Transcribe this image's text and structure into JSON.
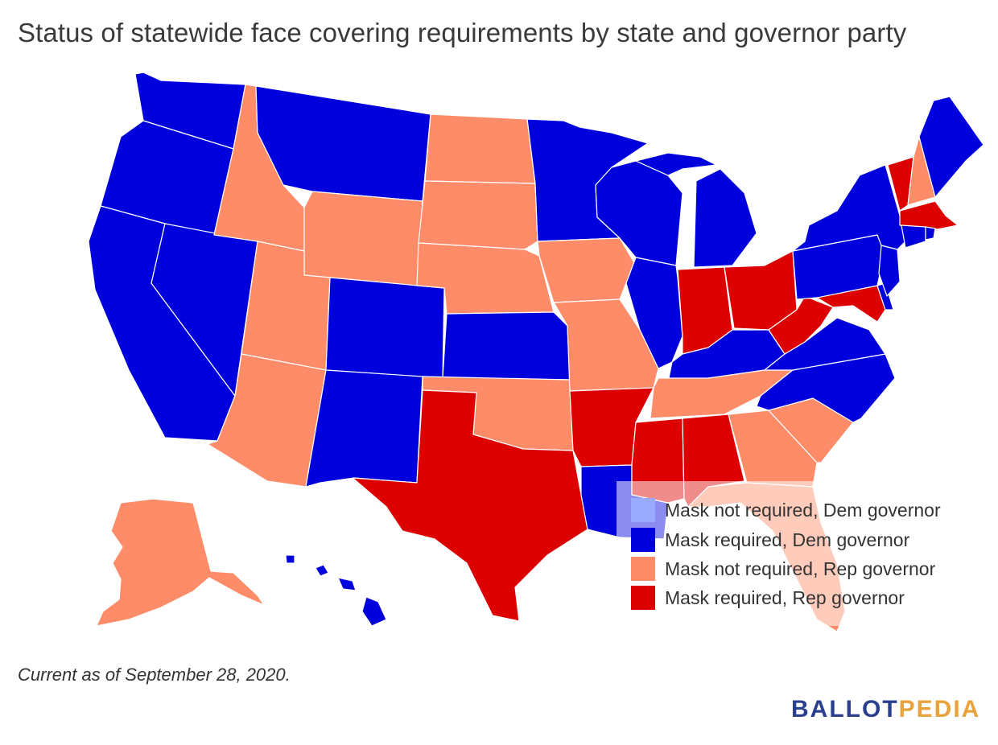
{
  "title": "Status of statewide face covering requirements by state and governor party",
  "colors": {
    "mask_not_required_dem": "#99aaff",
    "mask_required_dem": "#0000dd",
    "mask_not_required_rep": "#ff8c69",
    "mask_required_rep": "#dd0000"
  },
  "legend": [
    {
      "label": "Mask not required, Dem governor",
      "color": "#99aaff"
    },
    {
      "label": "Mask required, Dem governor",
      "color": "#0000dd"
    },
    {
      "label": "Mask not required, Rep governor",
      "color": "#ff8c69"
    },
    {
      "label": "Mask required, Rep governor",
      "color": "#dd0000"
    }
  ],
  "states": [
    {
      "state": "Washington",
      "status": "Mask required, Dem governor"
    },
    {
      "state": "Oregon",
      "status": "Mask required, Dem governor"
    },
    {
      "state": "California",
      "status": "Mask required, Dem governor"
    },
    {
      "state": "Nevada",
      "status": "Mask required, Dem governor"
    },
    {
      "state": "Idaho",
      "status": "Mask not required, Rep governor"
    },
    {
      "state": "Montana",
      "status": "Mask required, Dem governor"
    },
    {
      "state": "Wyoming",
      "status": "Mask not required, Rep governor"
    },
    {
      "state": "Utah",
      "status": "Mask not required, Rep governor"
    },
    {
      "state": "Arizona",
      "status": "Mask not required, Rep governor"
    },
    {
      "state": "Colorado",
      "status": "Mask required, Dem governor"
    },
    {
      "state": "New Mexico",
      "status": "Mask required, Dem governor"
    },
    {
      "state": "North Dakota",
      "status": "Mask not required, Rep governor"
    },
    {
      "state": "South Dakota",
      "status": "Mask not required, Rep governor"
    },
    {
      "state": "Nebraska",
      "status": "Mask not required, Rep governor"
    },
    {
      "state": "Kansas",
      "status": "Mask required, Dem governor"
    },
    {
      "state": "Oklahoma",
      "status": "Mask not required, Rep governor"
    },
    {
      "state": "Texas",
      "status": "Mask required, Rep governor"
    },
    {
      "state": "Minnesota",
      "status": "Mask required, Dem governor"
    },
    {
      "state": "Iowa",
      "status": "Mask not required, Rep governor"
    },
    {
      "state": "Missouri",
      "status": "Mask not required, Rep governor"
    },
    {
      "state": "Arkansas",
      "status": "Mask required, Rep governor"
    },
    {
      "state": "Louisiana",
      "status": "Mask required, Dem governor"
    },
    {
      "state": "Wisconsin",
      "status": "Mask required, Dem governor"
    },
    {
      "state": "Illinois",
      "status": "Mask required, Dem governor"
    },
    {
      "state": "Michigan",
      "status": "Mask required, Dem governor"
    },
    {
      "state": "Indiana",
      "status": "Mask required, Rep governor"
    },
    {
      "state": "Ohio",
      "status": "Mask required, Rep governor"
    },
    {
      "state": "Kentucky",
      "status": "Mask required, Dem governor"
    },
    {
      "state": "Tennessee",
      "status": "Mask not required, Rep governor"
    },
    {
      "state": "Mississippi",
      "status": "Mask required, Rep governor"
    },
    {
      "state": "Alabama",
      "status": "Mask required, Rep governor"
    },
    {
      "state": "Georgia",
      "status": "Mask not required, Rep governor"
    },
    {
      "state": "Florida",
      "status": "Mask not required, Rep governor"
    },
    {
      "state": "South Carolina",
      "status": "Mask not required, Rep governor"
    },
    {
      "state": "North Carolina",
      "status": "Mask required, Dem governor"
    },
    {
      "state": "Virginia",
      "status": "Mask required, Dem governor"
    },
    {
      "state": "West Virginia",
      "status": "Mask required, Rep governor"
    },
    {
      "state": "Maryland",
      "status": "Mask required, Rep governor"
    },
    {
      "state": "Delaware",
      "status": "Mask required, Dem governor"
    },
    {
      "state": "Pennsylvania",
      "status": "Mask required, Dem governor"
    },
    {
      "state": "New Jersey",
      "status": "Mask required, Dem governor"
    },
    {
      "state": "New York",
      "status": "Mask required, Dem governor"
    },
    {
      "state": "Connecticut",
      "status": "Mask required, Dem governor"
    },
    {
      "state": "Rhode Island",
      "status": "Mask required, Dem governor"
    },
    {
      "state": "Massachusetts",
      "status": "Mask required, Rep governor"
    },
    {
      "state": "Vermont",
      "status": "Mask required, Rep governor"
    },
    {
      "state": "New Hampshire",
      "status": "Mask not required, Rep governor"
    },
    {
      "state": "Maine",
      "status": "Mask required, Dem governor"
    },
    {
      "state": "Alaska",
      "status": "Mask not required, Rep governor"
    },
    {
      "state": "Hawaii",
      "status": "Mask required, Dem governor"
    }
  ],
  "footnote": "Current as of September 28, 2020.",
  "brand": {
    "part1": "BALLOT",
    "part2": "PEDIA",
    "color1": "#2b3f8f",
    "color2": "#e8a33c"
  }
}
